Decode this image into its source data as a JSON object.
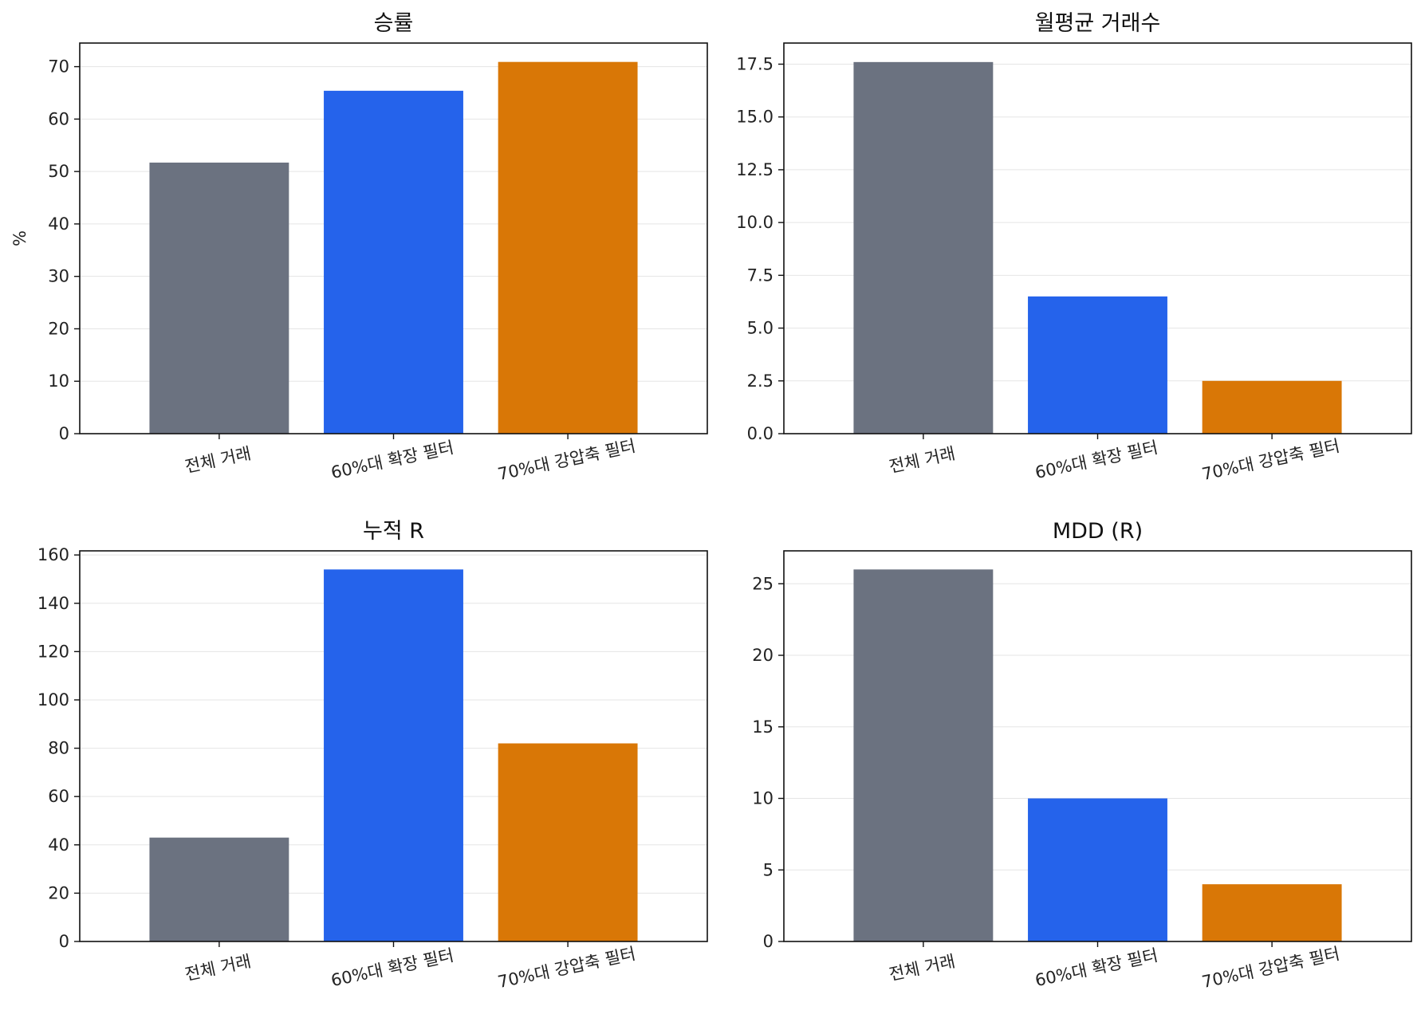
{
  "chart_data": [
    {
      "type": "bar",
      "title": "승률",
      "xlabel": "",
      "ylabel": "%",
      "categories": [
        "전체 거래",
        "60%대 확장 필터",
        "70%대 강압축 필터"
      ],
      "values": [
        51.7,
        65.4,
        70.9
      ],
      "ylim": [
        0,
        74.5
      ],
      "yticks": [
        0,
        10,
        20,
        30,
        40,
        50,
        60,
        70
      ],
      "ytick_labels": [
        "0",
        "10",
        "20",
        "30",
        "40",
        "50",
        "60",
        "70"
      ],
      "grid": "y",
      "bar_colors": [
        "#6b7280",
        "#2563eb",
        "#d97706"
      ]
    },
    {
      "type": "bar",
      "title": "월평균 거래수",
      "xlabel": "",
      "ylabel": "",
      "categories": [
        "전체 거래",
        "60%대 확장 필터",
        "70%대 강압축 필터"
      ],
      "values": [
        17.6,
        6.5,
        2.5
      ],
      "ylim": [
        0,
        18.5
      ],
      "yticks": [
        0,
        2.5,
        5,
        7.5,
        10,
        12.5,
        15,
        17.5
      ],
      "ytick_labels": [
        "0.0",
        "2.5",
        "5.0",
        "7.5",
        "10.0",
        "12.5",
        "15.0",
        "17.5"
      ],
      "grid": "y",
      "bar_colors": [
        "#6b7280",
        "#2563eb",
        "#d97706"
      ]
    },
    {
      "type": "bar",
      "title": "누적 R",
      "xlabel": "",
      "ylabel": "",
      "categories": [
        "전체 거래",
        "60%대 확장 필터",
        "70%대 강압축 필터"
      ],
      "values": [
        43,
        154,
        82
      ],
      "ylim": [
        0,
        161.7
      ],
      "yticks": [
        0,
        20,
        40,
        60,
        80,
        100,
        120,
        140,
        160
      ],
      "ytick_labels": [
        "0",
        "20",
        "40",
        "60",
        "80",
        "100",
        "120",
        "140",
        "160"
      ],
      "grid": "y",
      "bar_colors": [
        "#6b7280",
        "#2563eb",
        "#d97706"
      ]
    },
    {
      "type": "bar",
      "title": "MDD (R)",
      "xlabel": "",
      "ylabel": "",
      "categories": [
        "전체 거래",
        "60%대 확장 필터",
        "70%대 강압축 필터"
      ],
      "values": [
        26,
        10,
        4
      ],
      "ylim": [
        0,
        27.3
      ],
      "yticks": [
        0,
        5,
        10,
        15,
        20,
        25
      ],
      "ytick_labels": [
        "0",
        "5",
        "10",
        "15",
        "20",
        "25"
      ],
      "grid": "y",
      "bar_colors": [
        "#6b7280",
        "#2563eb",
        "#d97706"
      ]
    }
  ]
}
